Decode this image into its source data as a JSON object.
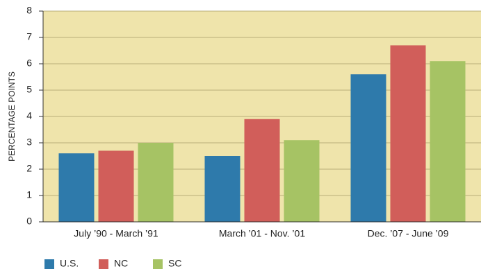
{
  "chart_data": {
    "type": "bar",
    "y_label": "PERCENTAGE POINTS",
    "categories": [
      "July ’90 - March ’91",
      "March ’01 - Nov. ’01",
      "Dec. ’07 - June ’09"
    ],
    "series": [
      {
        "name": "U.S.",
        "color": "#2e7aab",
        "values": [
          2.6,
          2.5,
          5.6
        ]
      },
      {
        "name": "NC",
        "color": "#d15e5a",
        "values": [
          2.7,
          3.9,
          6.7
        ]
      },
      {
        "name": "SC",
        "color": "#a6c364",
        "values": [
          3.0,
          3.1,
          6.1
        ]
      }
    ],
    "ylim": [
      0,
      8
    ],
    "yticks": [
      0,
      1,
      2,
      3,
      4,
      5,
      6,
      7,
      8
    ],
    "grid": true,
    "legend": "bottom-left",
    "plot_background": "#efe4ab"
  }
}
